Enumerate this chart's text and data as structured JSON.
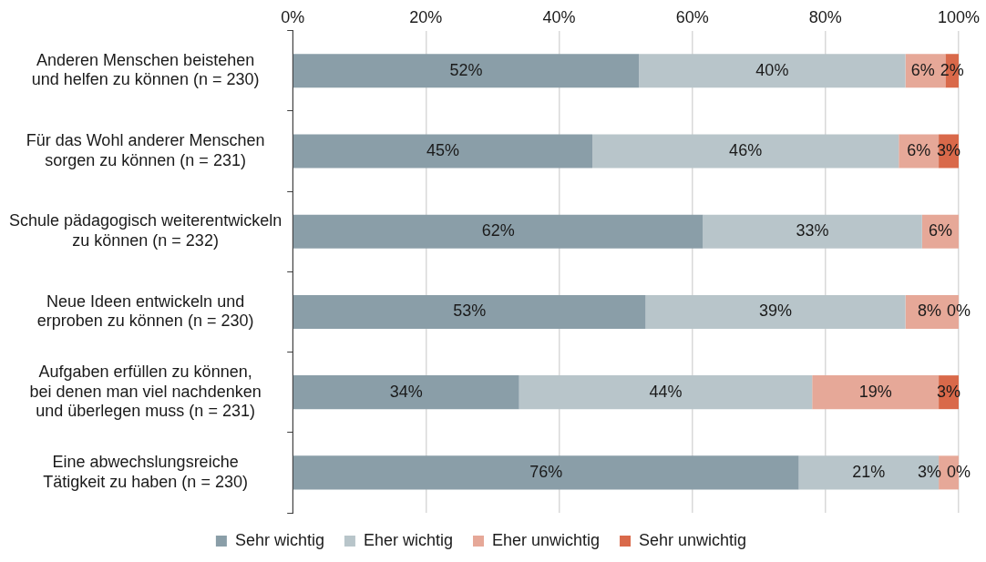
{
  "chart_data": {
    "type": "bar",
    "orientation": "horizontal",
    "stacked": true,
    "categories": [
      "Anderen Menschen beistehen\nund helfen zu können (n = 230)",
      "Für das Wohl anderer Menschen\nsorgen zu können (n = 231)",
      "Schule pädagogisch weiterentwickeln\nzu können (n = 232)",
      "Neue Ideen entwickeln und\nerproben zu können (n = 230)",
      "Aufgaben erfüllen zu können,\nbei denen man viel nachdenken\nund überlegen muss (n = 231)",
      "Eine abwechslungsreiche\nTätigkeit zu haben (n = 230)"
    ],
    "series": [
      {
        "name": "Sehr wichtig",
        "color": "#8a9ea8",
        "values": [
          52,
          45,
          61.6,
          53,
          34,
          76
        ],
        "value_labels": [
          "52%",
          "45%",
          "62%",
          "53%",
          "34%",
          "76%"
        ]
      },
      {
        "name": "Eher wichtig",
        "color": "#b8c5ca",
        "values": [
          40,
          46,
          32.9,
          39,
          44,
          21
        ],
        "value_labels": [
          "40%",
          "46%",
          "33%",
          "39%",
          "44%",
          "21%"
        ]
      },
      {
        "name": "Eher unwichtig",
        "color": "#e6a898",
        "values": [
          6,
          6,
          5.5,
          8,
          19,
          3
        ],
        "value_labels": [
          "6%",
          "6%",
          "6%",
          "8%",
          "19%",
          "3%"
        ]
      },
      {
        "name": "Sehr unwichtig",
        "color": "#d9694a",
        "values": [
          2,
          3,
          null,
          0,
          3,
          0
        ],
        "value_labels": [
          "2%",
          "3%",
          null,
          "0%",
          "3%",
          "0%"
        ]
      }
    ],
    "xlim": [
      0,
      100
    ],
    "xticks": [
      {
        "value": 0,
        "label": "0%"
      },
      {
        "value": 20,
        "label": "20%"
      },
      {
        "value": 40,
        "label": "40%"
      },
      {
        "value": 60,
        "label": "60%"
      },
      {
        "value": 80,
        "label": "80%"
      },
      {
        "value": 100,
        "label": "100%"
      }
    ],
    "grid": "x",
    "legend": "bottom"
  }
}
